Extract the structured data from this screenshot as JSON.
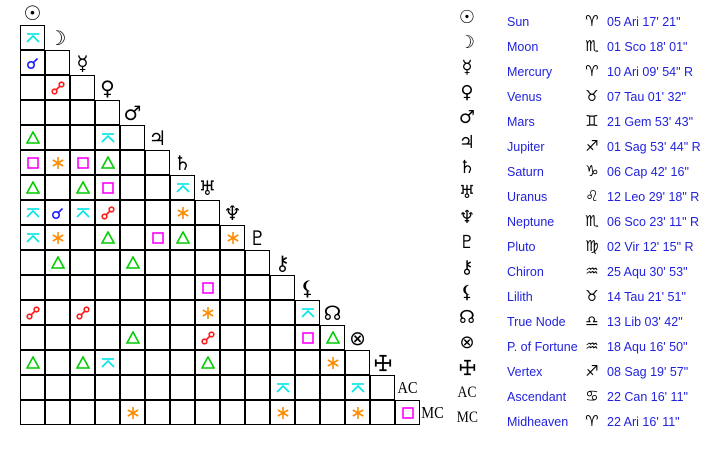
{
  "planets": [
    {
      "name": "Sun",
      "glyph": "☉",
      "sign": "♈",
      "position": "05 Ari 17' 21\""
    },
    {
      "name": "Moon",
      "glyph": "☽",
      "sign": "♏",
      "position": "01 Sco 18' 01\""
    },
    {
      "name": "Mercury",
      "glyph": "☿",
      "sign": "♈",
      "position": "10 Ari 09' 54\" R"
    },
    {
      "name": "Venus",
      "glyph": "♀",
      "sign": "♉",
      "position": "07 Tau 01' 32\""
    },
    {
      "name": "Mars",
      "glyph": "♂",
      "sign": "♊",
      "position": "21 Gem 53' 43\""
    },
    {
      "name": "Jupiter",
      "glyph": "♃",
      "sign": "♐",
      "position": "01 Sag 53' 44\" R"
    },
    {
      "name": "Saturn",
      "glyph": "♄",
      "sign": "♑",
      "position": "06 Cap 42' 16\""
    },
    {
      "name": "Uranus",
      "glyph": "♅",
      "sign": "♌",
      "position": "12 Leo 29' 18\" R"
    },
    {
      "name": "Neptune",
      "glyph": "♆",
      "sign": "♏",
      "position": "06 Sco 23' 11\" R"
    },
    {
      "name": "Pluto",
      "glyph": "♇",
      "sign": "♍",
      "position": "02 Vir 12' 15\" R"
    },
    {
      "name": "Chiron",
      "glyph": "⚷",
      "sign": "♒",
      "position": "25 Aqu 30' 53\""
    },
    {
      "name": "Lilith",
      "glyph": "⚸",
      "sign": "♉",
      "position": "14 Tau 21' 51\""
    },
    {
      "name": "True Node",
      "glyph": "☊",
      "sign": "♎",
      "position": "13 Lib 03' 42\""
    },
    {
      "name": "P. of Fortune",
      "glyph": "⊗",
      "sign": "♒",
      "position": "18 Aqu 16' 50\""
    },
    {
      "name": "Vertex",
      "glyph": "✢",
      "sign": "♐",
      "position": "08 Sag 19' 57\""
    },
    {
      "name": "Ascendant",
      "glyph": "AC",
      "sign": "♋",
      "position": "22 Can 16' 11\""
    },
    {
      "name": "Midheaven",
      "glyph": "MC",
      "sign": "♈",
      "position": "22 Ari 16' 11\""
    }
  ],
  "aspect_colors": {
    "conjunction": "#1a1aff",
    "opposition": "#ff1a1a",
    "trine": "#00cc00",
    "square": "#ff00ff",
    "sextile": "#ff8c00",
    "quincunx": "#00e5e5"
  },
  "aspects": [
    [
      1,
      0,
      "quincunx"
    ],
    [
      2,
      0,
      "conjunction"
    ],
    [
      3,
      1,
      "opposition"
    ],
    [
      5,
      0,
      "trine"
    ],
    [
      5,
      3,
      "quincunx"
    ],
    [
      6,
      0,
      "square"
    ],
    [
      6,
      1,
      "sextile"
    ],
    [
      6,
      2,
      "square"
    ],
    [
      6,
      3,
      "trine"
    ],
    [
      7,
      0,
      "trine"
    ],
    [
      7,
      2,
      "trine"
    ],
    [
      7,
      3,
      "square"
    ],
    [
      7,
      6,
      "quincunx"
    ],
    [
      8,
      0,
      "quincunx"
    ],
    [
      8,
      1,
      "conjunction"
    ],
    [
      8,
      2,
      "quincunx"
    ],
    [
      8,
      3,
      "opposition"
    ],
    [
      8,
      6,
      "sextile"
    ],
    [
      9,
      0,
      "quincunx"
    ],
    [
      9,
      1,
      "sextile"
    ],
    [
      9,
      3,
      "trine"
    ],
    [
      9,
      5,
      "square"
    ],
    [
      9,
      6,
      "trine"
    ],
    [
      9,
      8,
      "sextile"
    ],
    [
      10,
      1,
      "trine"
    ],
    [
      10,
      4,
      "trine"
    ],
    [
      11,
      7,
      "square"
    ],
    [
      12,
      0,
      "opposition"
    ],
    [
      12,
      2,
      "opposition"
    ],
    [
      12,
      7,
      "sextile"
    ],
    [
      12,
      11,
      "quincunx"
    ],
    [
      13,
      4,
      "trine"
    ],
    [
      13,
      7,
      "opposition"
    ],
    [
      13,
      11,
      "square"
    ],
    [
      13,
      12,
      "trine"
    ],
    [
      14,
      0,
      "trine"
    ],
    [
      14,
      2,
      "trine"
    ],
    [
      14,
      3,
      "quincunx"
    ],
    [
      14,
      7,
      "trine"
    ],
    [
      14,
      12,
      "sextile"
    ],
    [
      15,
      10,
      "quincunx"
    ],
    [
      15,
      13,
      "quincunx"
    ],
    [
      16,
      4,
      "sextile"
    ],
    [
      16,
      10,
      "sextile"
    ],
    [
      16,
      13,
      "sextile"
    ],
    [
      16,
      15,
      "square"
    ]
  ]
}
